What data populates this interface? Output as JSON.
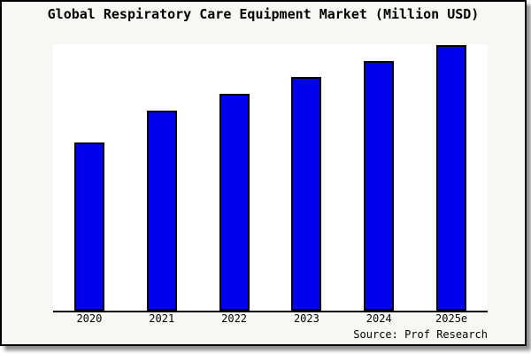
{
  "title": "Global Respiratory Care Equipment Market (Million USD)",
  "source": "Source: Prof Research",
  "chart_data": {
    "type": "bar",
    "title": "Global Respiratory Care Equipment Market (Million USD)",
    "categories": [
      "2020",
      "2021",
      "2022",
      "2023",
      "2024",
      "2025e"
    ],
    "values": [
      190,
      226,
      245,
      264,
      282,
      300
    ],
    "values_note": "No y-axis, gridlines or data labels are visible in the chart; values are relative bar heights measured in pixels.",
    "xlabel": "",
    "ylabel": "",
    "legend": "none",
    "grid": false,
    "y_axis_visible": false
  },
  "colors": {
    "bar_fill": "#0000f0",
    "bar_stroke": "#000000",
    "frame_bg": "#f8f7f3",
    "plot_bg": "#ffffff",
    "frame_border": "#000000",
    "text": "#000000"
  }
}
